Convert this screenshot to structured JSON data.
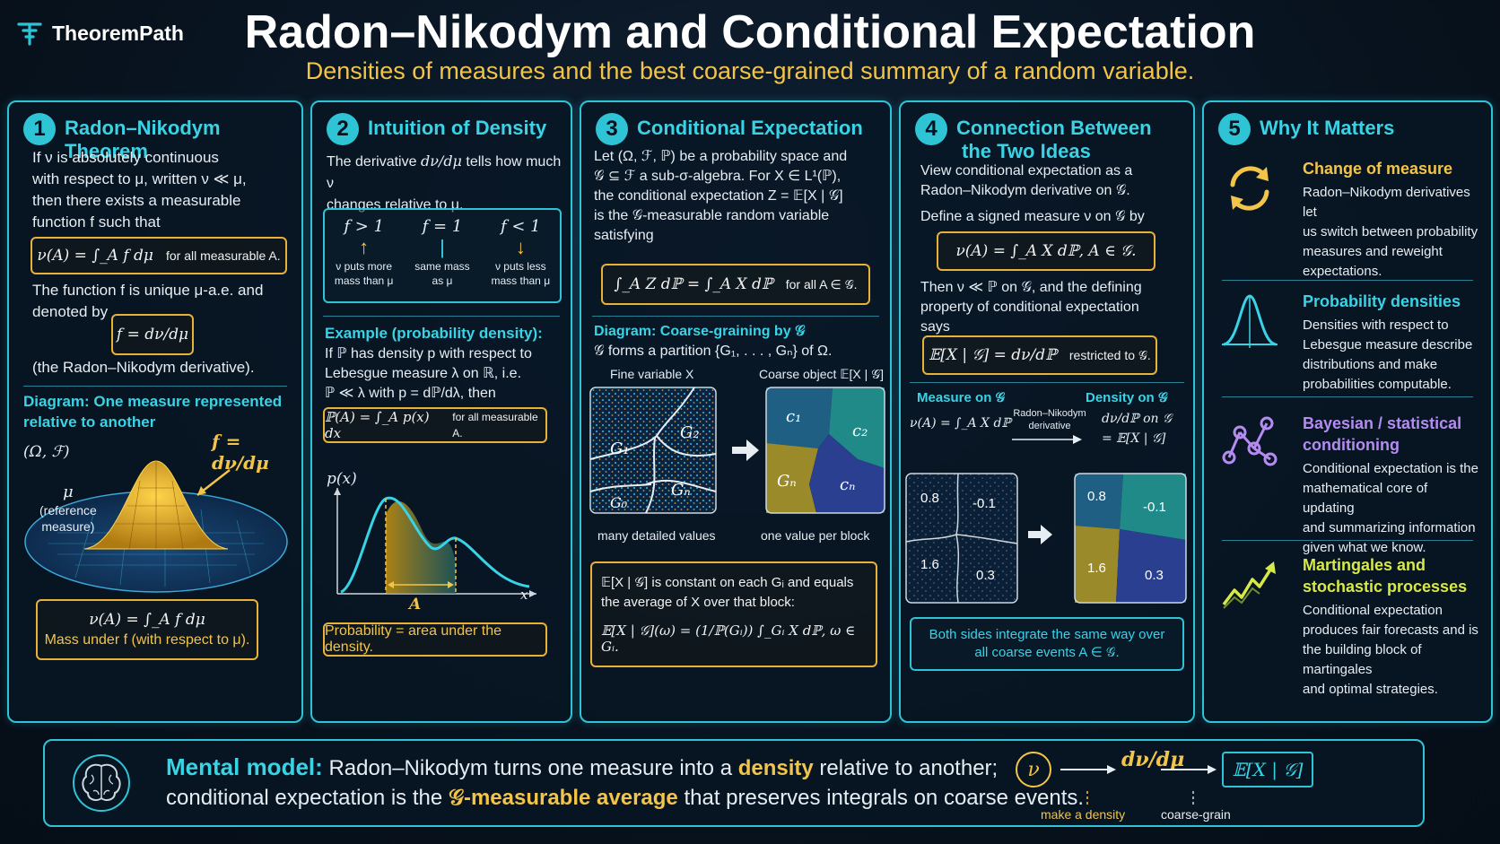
{
  "brand": {
    "name": "TheoremPath"
  },
  "header": {
    "title": "Radon–Nikodym and Conditional Expectation",
    "subtitle": "Densities of measures and the best coarse-grained summary of a random variable."
  },
  "panel1": {
    "num": "1",
    "title": "Radon–Nikodym Theorem",
    "intro_l1": "If ν is absolutely continuous",
    "intro_l2": "with respect to μ, written ν ≪ μ,",
    "intro_l3": "then there exists a measurable",
    "intro_l4": "function f such that",
    "formula": "ν(A) = ∫_A f dμ",
    "formula_note": "for all measurable A.",
    "unique_l1": "The function f is unique μ-a.e. and",
    "unique_l2": "denoted by",
    "deriv": "f = dν/dμ",
    "deriv_note": "(the Radon–Nikodym derivative).",
    "diagram_title_l1": "Diagram: One measure represented",
    "diagram_title_l2": "relative to another",
    "space_label": "(Ω, ℱ)",
    "mu_label": "μ",
    "mu_note_l1": "(reference",
    "mu_note_l2": "measure)",
    "f_label": "f = dν/dμ",
    "box_formula": "ν(A) = ∫_A f dμ",
    "box_caption": "Mass under f (with respect to μ)."
  },
  "panel2": {
    "num": "2",
    "title": "Intuition of Density",
    "intro_a": "The derivative",
    "intro_frac": "dν/dμ",
    "intro_b": "tells how much ν",
    "intro_c": "changes relative to μ.",
    "cases": [
      {
        "cond": "f > 1",
        "arrow": "↑",
        "l1": "ν puts more",
        "l2": "mass than μ"
      },
      {
        "cond": "f = 1",
        "arrow": "|",
        "l1": "same mass",
        "l2": "as μ"
      },
      {
        "cond": "f < 1",
        "arrow": "↓",
        "l1": "ν puts less",
        "l2": "mass than μ"
      }
    ],
    "example_head": "Example (probability density):",
    "example_l1": "If ℙ has density p with respect to",
    "example_l2": "Lebesgue measure λ on ℝ, i.e.",
    "example_l3": "ℙ ≪ λ with p = dℙ/dλ, then",
    "formula": "ℙ(A) = ∫_A p(x) dx",
    "formula_note": "for all measurable A.",
    "plot_ylabel": "p(x)",
    "plot_xlabel": "x",
    "plot_region": "A",
    "caption": "Probability = area under the density."
  },
  "panel3": {
    "num": "3",
    "title": "Conditional Expectation",
    "intro_l1": "Let (Ω, ℱ, ℙ) be a probability space and",
    "intro_l2": "𝒢 ⊆ ℱ a sub-σ-algebra. For X ∈ L¹(ℙ),",
    "intro_l3": "the conditional expectation Z = 𝔼[X | 𝒢]",
    "intro_l4": "is the 𝒢-measurable random variable",
    "intro_l5": "satisfying",
    "formula": "∫_A Z dℙ = ∫_A X dℙ",
    "formula_note": "for all A ∈ 𝒢.",
    "diagram_head": "Diagram: Coarse-graining by 𝒢",
    "partition_text": "𝒢 forms a partition {G₁, . . . , Gₙ} of Ω.",
    "fine_label": "Fine variable X",
    "coarse_label": "Coarse object 𝔼[X | 𝒢]",
    "fine_cells": [
      "G₁",
      "G₂",
      "G₀",
      "Gₙ"
    ],
    "coarse_cells": [
      "c₁",
      "c₂",
      "Gₙ",
      "cₙ"
    ],
    "fine_caption": "many detailed values",
    "coarse_caption": "one value per block",
    "box_l1": "𝔼[X | 𝒢]  is constant on each Gᵢ and equals",
    "box_l2": "the average of X over that block:",
    "box_formula": "𝔼[X | 𝒢](ω) = (1/ℙ(Gᵢ)) ∫_Gᵢ X dℙ,    ω ∈ Gᵢ."
  },
  "panel4": {
    "num": "4",
    "title_l1": "Connection Between",
    "title_l2": "the Two Ideas",
    "intro_l1": "View conditional expectation as a",
    "intro_l2": "Radon–Nikodym derivative on 𝒢.",
    "define": "Define a signed measure ν on 𝒢 by",
    "formula": "ν(A) = ∫_A X dℙ,    A ∈ 𝒢.",
    "then_l1": "Then ν ≪ ℙ on 𝒢, and the defining",
    "then_l2": "property of conditional expectation",
    "then_l3": "says",
    "box_formula": "𝔼[X | 𝒢] = dν/dℙ",
    "box_note": "restricted to 𝒢.",
    "measure_head": "Measure on 𝒢",
    "density_head": "Density on 𝒢",
    "measure_formula": "ν(A) = ∫_A X dℙ",
    "arrow_l1": "Radon–Nikodym",
    "arrow_l2": "derivative",
    "density_formula_l1": "dν/dℙ on 𝒢",
    "density_formula_l2": "= 𝔼[X | 𝒢]",
    "left_values": [
      "0.8",
      "-0.1",
      "1.6",
      "0.3"
    ],
    "right_values": [
      "0.8",
      "-0.1",
      "1.6",
      "0.3"
    ],
    "footer_l1": "Both sides integrate the same way over",
    "footer_l2": "all coarse events A ∈ 𝒢."
  },
  "panel5": {
    "num": "5",
    "title": "Why It Matters",
    "items": [
      {
        "icon": "refresh-arrows-icon",
        "head_l1": "Change of measure",
        "head_l2": "",
        "body": [
          "Radon–Nikodym derivatives let",
          "us switch between probability",
          "measures and reweight",
          "expectations."
        ]
      },
      {
        "icon": "bell-curve-icon",
        "head_l1": "Probability densities",
        "head_l2": "",
        "body": [
          "Densities with respect to",
          "Lebesgue measure describe",
          "distributions and make",
          "probabilities computable."
        ]
      },
      {
        "icon": "network-graph-icon",
        "head_l1": "Bayesian / statistical",
        "head_l2": "conditioning",
        "body": [
          "Conditional expectation is the",
          "mathematical core of updating",
          "and summarizing information",
          "given what we know."
        ]
      },
      {
        "icon": "trend-arrow-icon",
        "head_l1": "Martingales and",
        "head_l2": "stochastic processes",
        "body": [
          "Conditional expectation",
          "produces fair forecasts and is",
          "the building block of martingales",
          "and optimal strategies."
        ]
      }
    ]
  },
  "mental_model": {
    "head": "Mental model:",
    "l1_a": "Radon–Nikodym turns one measure into a",
    "l1_em": "density",
    "l1_b": "relative to another;",
    "l2_a": "conditional expectation is the",
    "l2_em": "𝒢-measurable average",
    "l2_b": "that preserves integrals on coarse events.",
    "flow_start": "ν",
    "flow_mid": "dν/dμ",
    "flow_end": "𝔼[X | 𝒢]",
    "flow_step1": "make a density",
    "flow_step2": "coarse-grain"
  },
  "colors": {
    "accent": "#2ec4d6",
    "gold": "#f2c44a",
    "violet": "#b48cf0",
    "lime": "#d6e84a"
  }
}
